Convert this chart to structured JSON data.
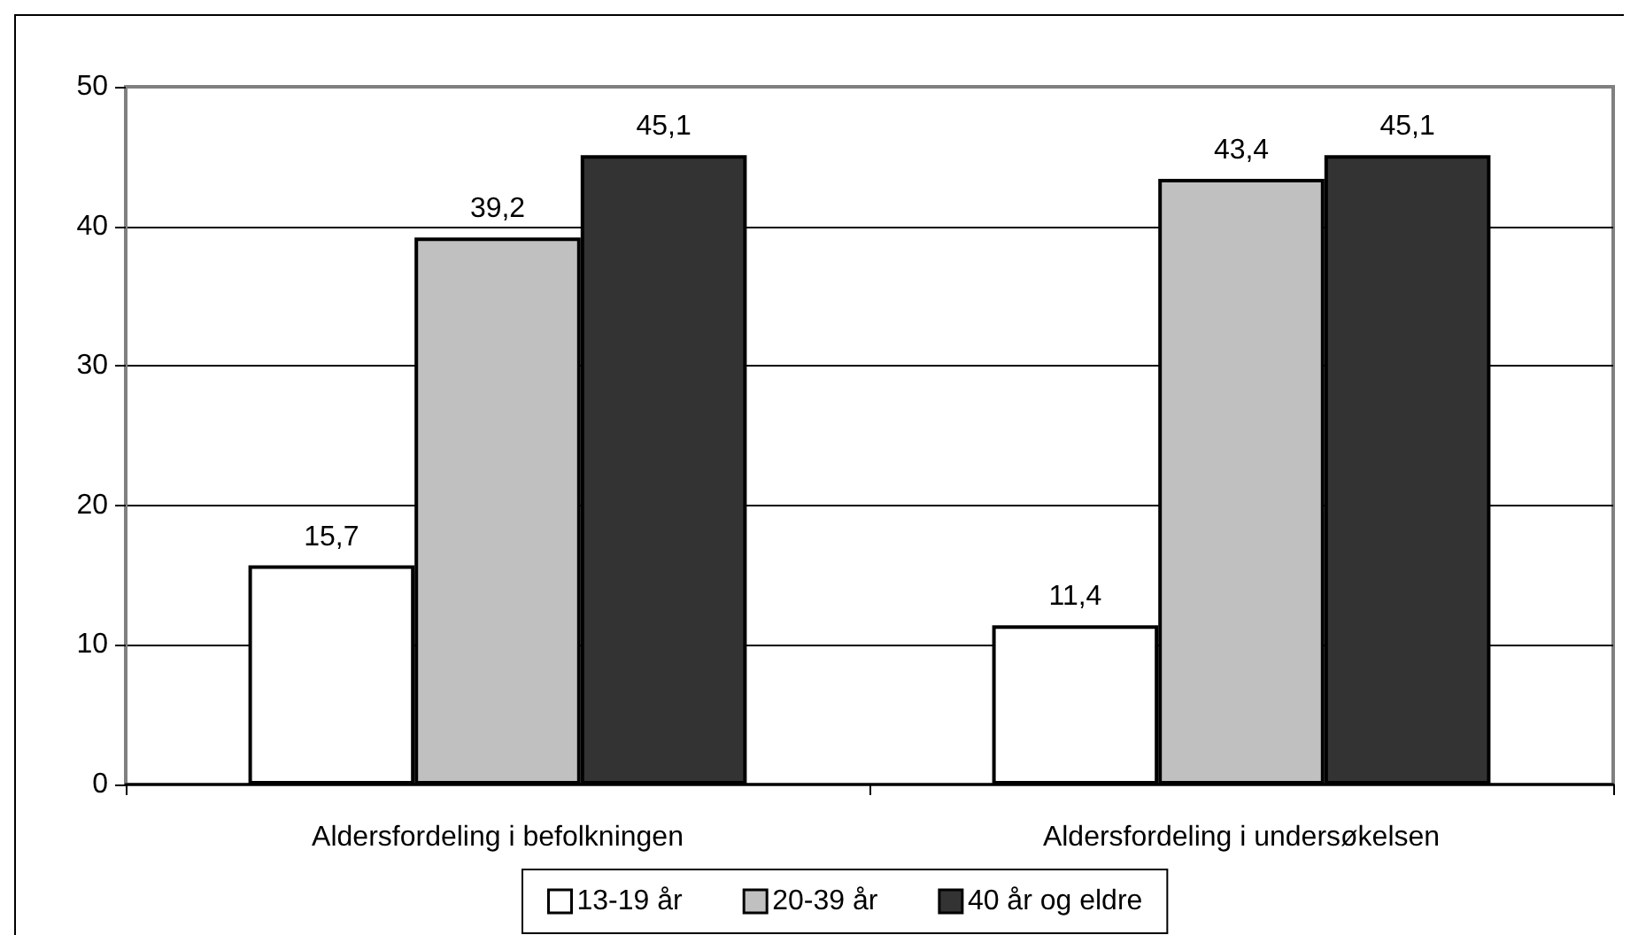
{
  "chart_data": {
    "type": "bar",
    "categories": [
      "Aldersfordeling i befolkningen",
      "Aldersfordeling i undersøkelsen"
    ],
    "series": [
      {
        "name": "13-19 år",
        "color": "#ffffff",
        "values": [
          15.7,
          11.4
        ],
        "value_labels": [
          "15,7",
          "11,4"
        ]
      },
      {
        "name": "20-39 år",
        "color": "#c0c0c0",
        "values": [
          39.2,
          43.4
        ],
        "value_labels": [
          "39,2",
          "43,4"
        ]
      },
      {
        "name": "40 år og eldre",
        "color": "#333333",
        "values": [
          45.1,
          45.1
        ],
        "value_labels": [
          "45,1",
          "45,1"
        ]
      }
    ],
    "ylim": [
      0,
      50
    ],
    "yticks": [
      0,
      10,
      20,
      30,
      40,
      50
    ],
    "grid": "y",
    "legend": "bottom"
  }
}
